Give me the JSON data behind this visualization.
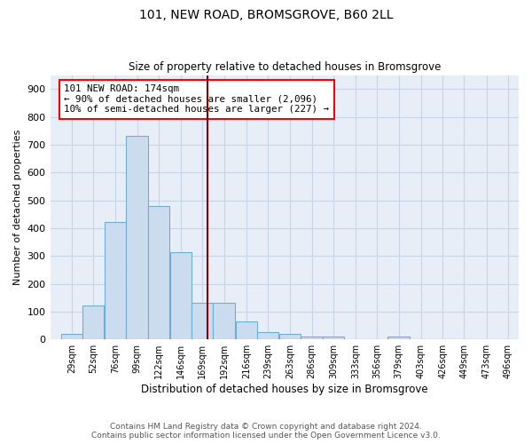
{
  "title": "101, NEW ROAD, BROMSGROVE, B60 2LL",
  "subtitle": "Size of property relative to detached houses in Bromsgrove",
  "xlabel": "Distribution of detached houses by size in Bromsgrove",
  "ylabel": "Number of detached properties",
  "categories": [
    "29sqm",
    "52sqm",
    "76sqm",
    "99sqm",
    "122sqm",
    "146sqm",
    "169sqm",
    "192sqm",
    "216sqm",
    "239sqm",
    "263sqm",
    "286sqm",
    "309sqm",
    "333sqm",
    "356sqm",
    "379sqm",
    "403sqm",
    "426sqm",
    "449sqm",
    "473sqm",
    "496sqm"
  ],
  "bar_values": [
    20,
    122,
    422,
    730,
    480,
    315,
    130,
    130,
    65,
    25,
    20,
    10,
    10,
    0,
    0,
    10,
    0,
    0,
    0,
    0,
    0
  ],
  "bar_color": "#ccdcef",
  "bar_edge_color": "#6baed6",
  "vline_color": "#8b0000",
  "annotation_box_text": "101 NEW ROAD: 174sqm\n← 90% of detached houses are smaller (2,096)\n10% of semi-detached houses are larger (227) →",
  "ylim": [
    0,
    950
  ],
  "yticks": [
    0,
    100,
    200,
    300,
    400,
    500,
    600,
    700,
    800,
    900
  ],
  "grid_color": "#c8d4e8",
  "background_color": "#e8eef8",
  "footer_line1": "Contains HM Land Registry data © Crown copyright and database right 2024.",
  "footer_line2": "Contains public sector information licensed under the Open Government Licence v3.0.",
  "property_sqm": 174,
  "bin_width": 23
}
